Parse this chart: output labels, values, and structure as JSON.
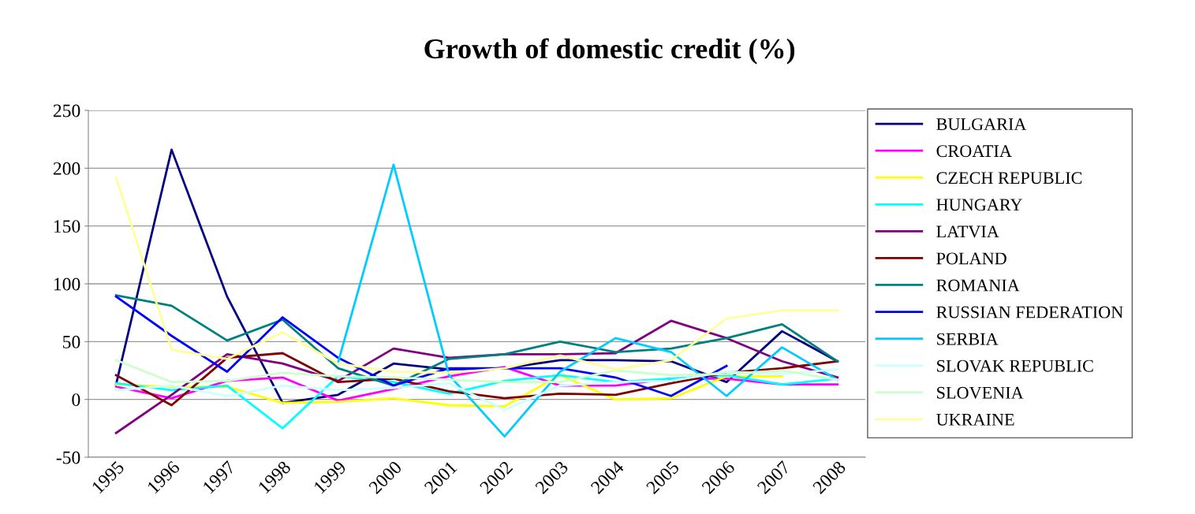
{
  "chart_data": {
    "type": "line",
    "title": "Growth of domestic credit (%)",
    "categories": [
      "1995",
      "1996",
      "1997",
      "1998",
      "1999",
      "2000",
      "2001",
      "2002",
      "2003",
      "2004",
      "2005",
      "2006",
      "2007",
      "2008"
    ],
    "ylim": [
      -50,
      250
    ],
    "yticks": [
      -50,
      0,
      50,
      100,
      150,
      200,
      250
    ],
    "grid": "y",
    "legend": "right",
    "marker": "none",
    "line_style": "solid",
    "series": [
      {
        "name": "BULGARIA",
        "color": "#000080",
        "values": [
          13,
          216,
          89,
          -3,
          4,
          31,
          26,
          27,
          34,
          34,
          33,
          15,
          59,
          33
        ]
      },
      {
        "name": "CROATIA",
        "color": "#ff00ff",
        "values": [
          11,
          1,
          16,
          19,
          -1,
          9,
          20,
          28,
          12,
          12,
          18,
          18,
          13,
          13
        ]
      },
      {
        "name": "CZECH REPUBLIC",
        "color": "#ffff00",
        "values": [
          13,
          11,
          11,
          -3,
          -2,
          1,
          -5,
          -6,
          21,
          0,
          1,
          20,
          20,
          null
        ]
      },
      {
        "name": "HUNGARY",
        "color": "#00ffff",
        "values": [
          14,
          8,
          12,
          -25,
          20,
          15,
          5,
          16,
          21,
          15,
          18,
          21,
          13,
          18
        ]
      },
      {
        "name": "LATVIA",
        "color": "#800080",
        "values": [
          -29,
          4,
          39,
          31,
          16,
          44,
          36,
          39,
          39,
          40,
          68,
          53,
          33,
          19
        ]
      },
      {
        "name": "POLAND",
        "color": "#800000",
        "values": [
          21,
          -5,
          36,
          40,
          15,
          18,
          7,
          1,
          5,
          4,
          14,
          23,
          27,
          33
        ]
      },
      {
        "name": "ROMANIA",
        "color": "#008080",
        "values": [
          90,
          81,
          51,
          69,
          27,
          12,
          35,
          39,
          50,
          41,
          44,
          53,
          65,
          33
        ]
      },
      {
        "name": "RUSSIAN FEDERATION",
        "color": "#0000ff",
        "values": [
          89,
          55,
          24,
          71,
          36,
          12,
          27,
          27,
          27,
          19,
          3,
          29,
          null,
          null
        ]
      },
      {
        "name": "SERBIA",
        "color": "#00ccff",
        "values": [
          null,
          null,
          null,
          null,
          32,
          203,
          21,
          -32,
          24,
          53,
          41,
          3,
          45,
          17
        ]
      },
      {
        "name": "SLOVAK REPUBLIC",
        "color": "#ccffff",
        "values": [
          8,
          12,
          3,
          12,
          8,
          10,
          14,
          -9,
          12,
          15,
          16,
          24,
          22,
          26
        ]
      },
      {
        "name": "SLOVENIA",
        "color": "#ccffcc",
        "values": [
          34,
          15,
          16,
          23,
          20,
          19,
          17,
          15,
          15,
          25,
          21,
          22,
          25,
          17
        ]
      },
      {
        "name": "UKRAINE",
        "color": "#ffff99",
        "values": [
          192,
          43,
          35,
          58,
          31,
          24,
          23,
          27,
          38,
          26,
          34,
          70,
          77,
          77
        ]
      }
    ]
  }
}
